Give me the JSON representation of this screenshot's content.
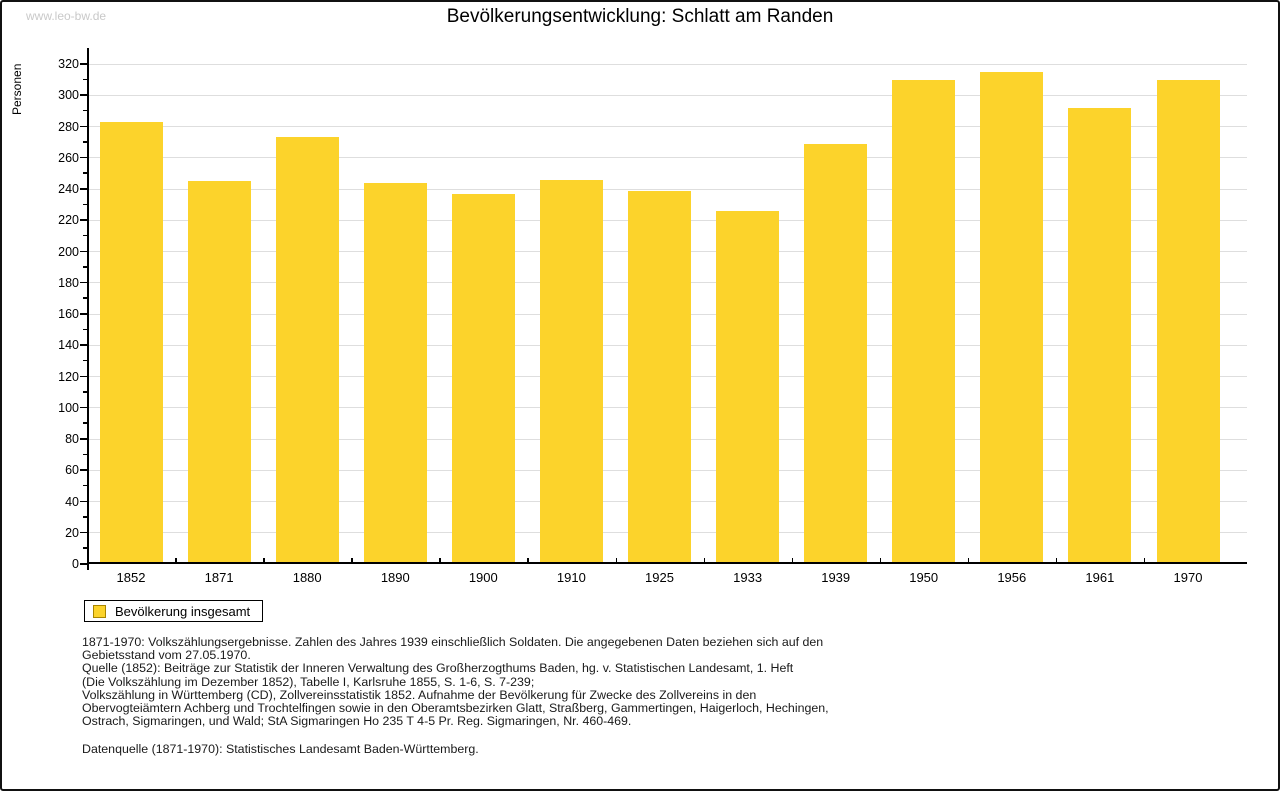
{
  "watermark": "www.leo-bw.de",
  "title": "Bevölkerungsentwicklung: Schlatt am Randen",
  "legend": {
    "label": "Bevölkerung insgesamt"
  },
  "colors": {
    "bar": "#FCD32B",
    "legend_swatch_border": "#A98600",
    "grid": "#DEDEDE",
    "axis": "#000000",
    "watermark": "#C9C9C9"
  },
  "chart_data": {
    "type": "bar",
    "title": "Bevölkerungsentwicklung: Schlatt am Randen",
    "xlabel": "",
    "ylabel": "Personen",
    "categories": [
      "1852",
      "1871",
      "1880",
      "1890",
      "1900",
      "1910",
      "1925",
      "1933",
      "1939",
      "1950",
      "1956",
      "1961",
      "1970"
    ],
    "values": [
      283,
      245,
      273,
      244,
      237,
      246,
      239,
      226,
      269,
      310,
      315,
      292,
      310
    ],
    "series_name": "Bevölkerung insgesamt",
    "ylim": [
      0,
      320
    ],
    "ytick_major": 20,
    "ytick_minor": 10,
    "grid": true,
    "legend_position": "bottom-left"
  },
  "footnotes": {
    "lines": [
      "1871-1970: Volkszählungsergebnisse. Zahlen des Jahres 1939 einschließlich Soldaten. Die angegebenen Daten beziehen sich auf den",
      "Gebietsstand vom 27.05.1970.",
      "Quelle (1852): Beiträge zur Statistik der Inneren Verwaltung des Großherzogthums Baden, hg. v. Statistischen Landesamt, 1. Heft",
      "(Die Volkszählung im Dezember 1852), Tabelle I, Karlsruhe 1855, S. 1-6, S. 7-239;",
      "Volkszählung in Württemberg (CD), Zollvereinsstatistik 1852. Aufnahme der Bevölkerung für Zwecke des Zollvereins in den",
      "Obervogteiämtern Achberg und Trochtelfingen sowie in den Oberamtsbezirken Glatt, Straßberg, Gammertingen, Haigerloch, Hechingen,",
      "Ostrach, Sigmaringen, und Wald; StA Sigmaringen Ho 235 T 4-5 Pr. Reg. Sigmaringen, Nr. 460-469."
    ]
  },
  "datasource": "Datenquelle (1871-1970): Statistisches Landesamt Baden-Württemberg."
}
